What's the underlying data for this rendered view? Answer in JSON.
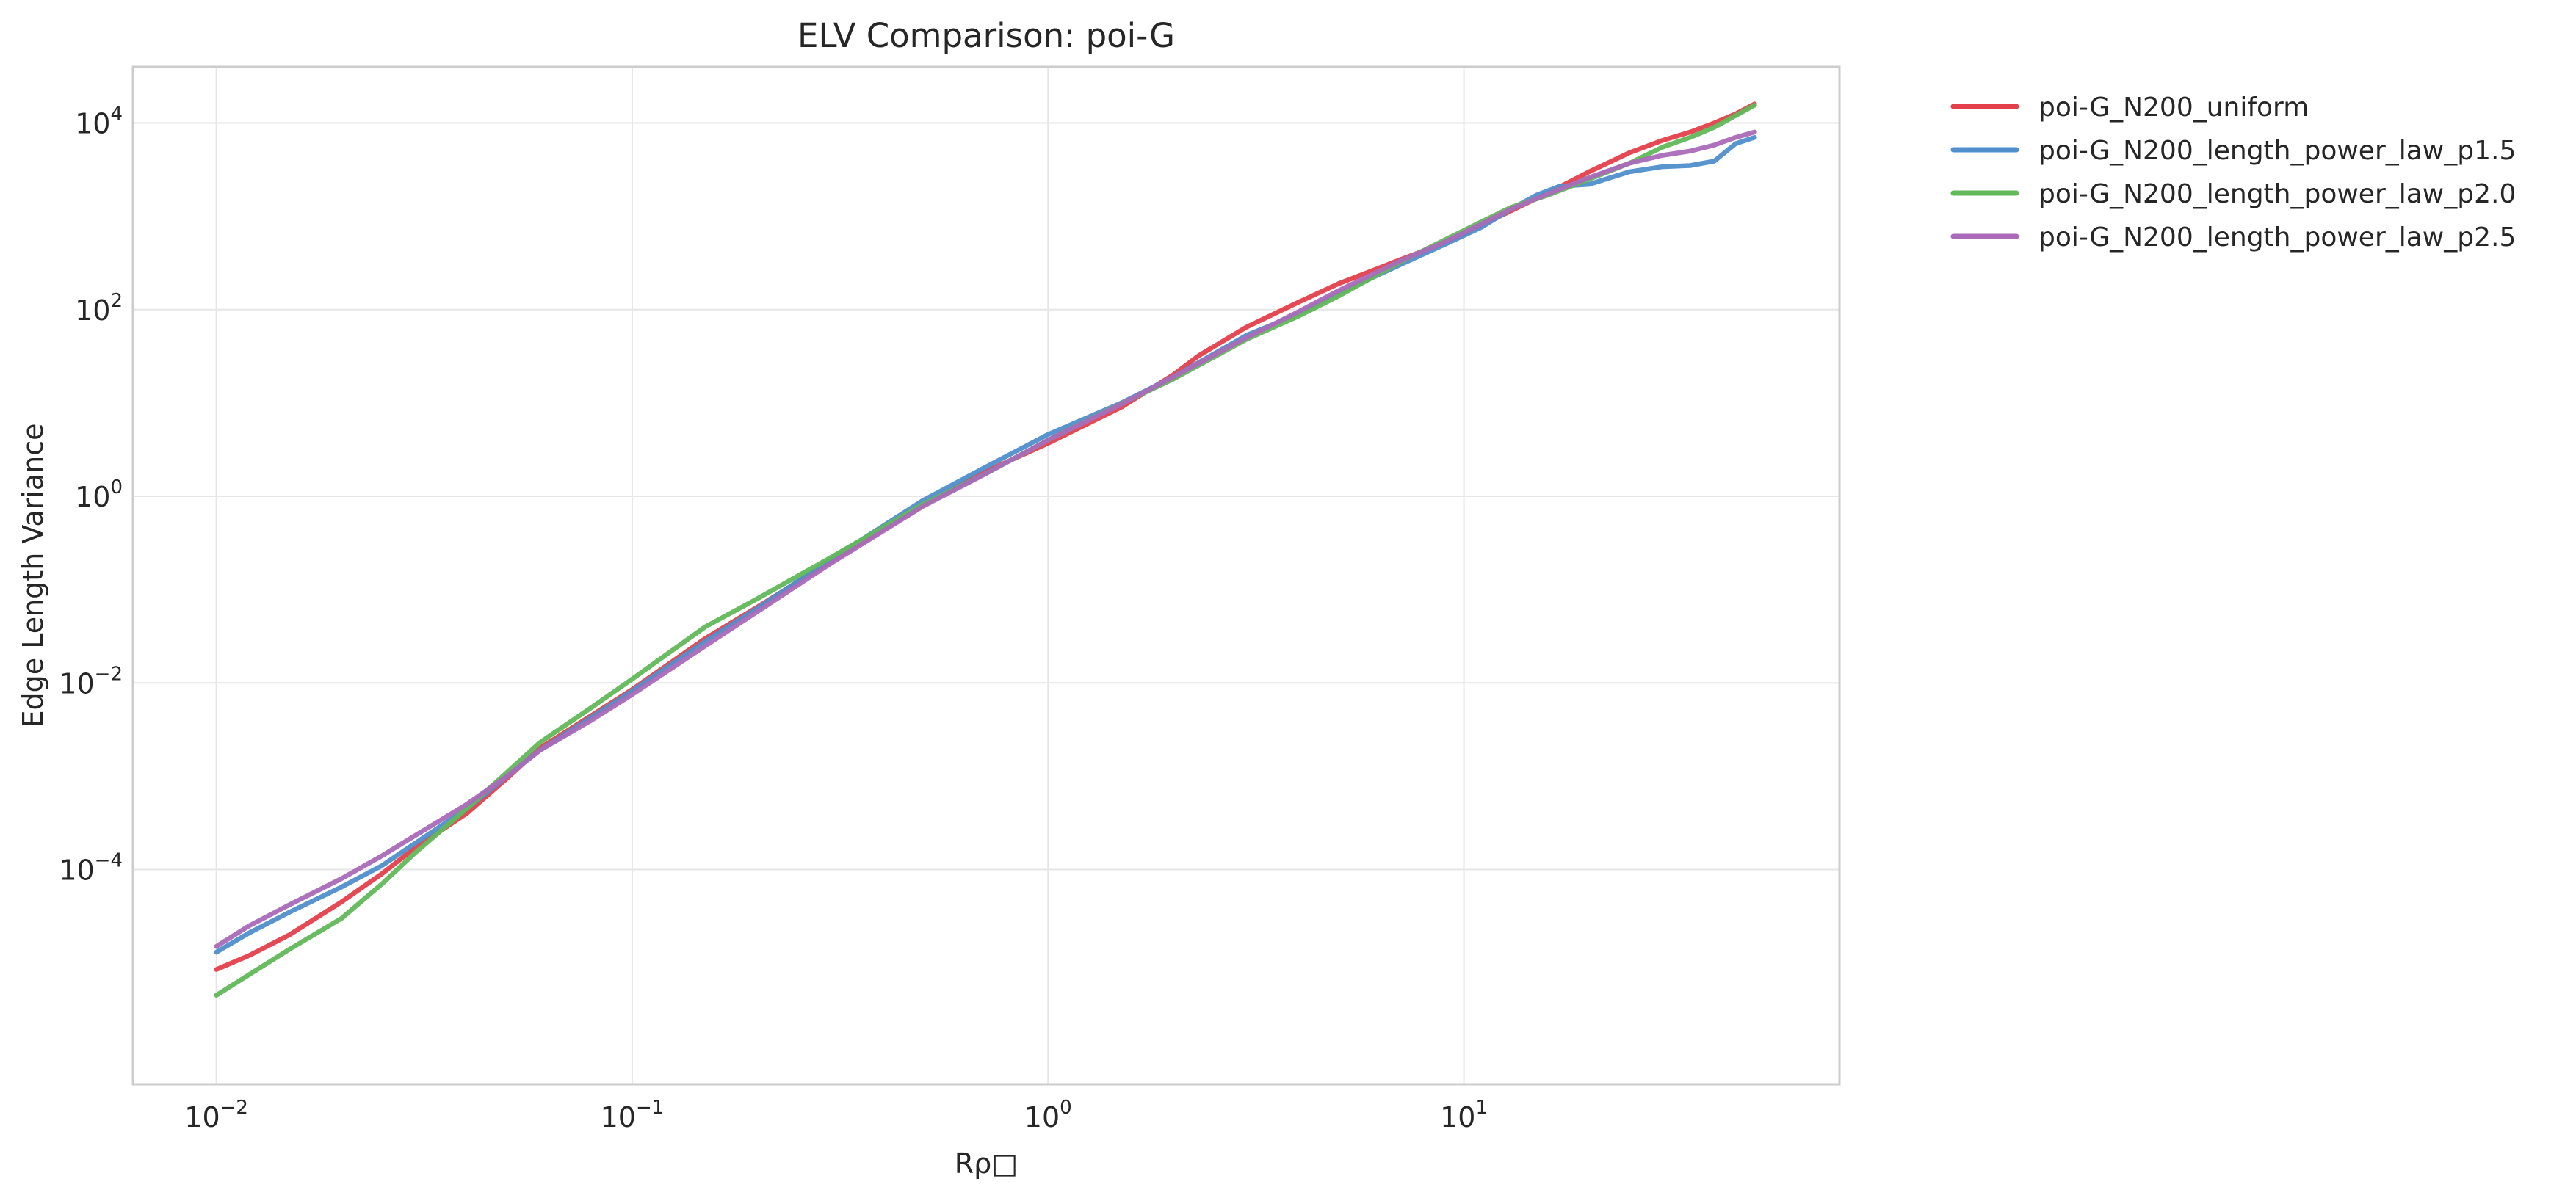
{
  "chart_data": {
    "type": "line",
    "title": "ELV Comparison: poi-G",
    "xlabel": "Rρ□",
    "ylabel": "Edge Length Variance",
    "xscale": "log",
    "yscale": "log",
    "xlim": [
      0.0063,
      80
    ],
    "ylim": [
      5e-07,
      40000
    ],
    "grid": true,
    "legend_position": "outside-top-right",
    "x_ticks": [
      {
        "base": "10",
        "exp": "−2",
        "value": 0.01
      },
      {
        "base": "10",
        "exp": "−1",
        "value": 0.1
      },
      {
        "base": "10",
        "exp": "0",
        "value": 1
      },
      {
        "base": "10",
        "exp": "1",
        "value": 10
      }
    ],
    "y_ticks": [
      {
        "base": "10",
        "exp": "−4",
        "value": 0.0001
      },
      {
        "base": "10",
        "exp": "−2",
        "value": 0.01
      },
      {
        "base": "10",
        "exp": "0",
        "value": 1
      },
      {
        "base": "10",
        "exp": "2",
        "value": 100
      },
      {
        "base": "10",
        "exp": "4",
        "value": 10000
      }
    ],
    "series": [
      {
        "name": "poi-G_N200_uniform",
        "color": "#e4404b",
        "x": [
          0.01,
          0.012,
          0.015,
          0.02,
          0.025,
          0.03,
          0.04,
          0.05,
          0.06,
          0.08,
          0.1,
          0.15,
          0.2,
          0.3,
          0.5,
          0.7,
          1.0,
          1.5,
          2.0,
          2.3,
          3.0,
          4.0,
          5.0,
          6.0,
          7.0,
          9.0,
          11.0,
          13.0,
          16.0,
          20.0,
          25.0,
          30.0,
          35.0,
          40.0,
          45.0,
          50.0
        ],
        "y": [
          8.5e-06,
          1.2e-05,
          2e-05,
          4.5e-05,
          9e-05,
          0.00017,
          0.0004,
          0.00095,
          0.002,
          0.0045,
          0.0085,
          0.03,
          0.065,
          0.2,
          0.8,
          1.8,
          3.7,
          9.0,
          20.0,
          32.0,
          65.0,
          120.0,
          190.0,
          260.0,
          340.0,
          520.0,
          800.0,
          1150.0,
          1800.0,
          3000.0,
          4800.0,
          6500.0,
          8000.0,
          10000.0,
          12500.0,
          16000.0
        ]
      },
      {
        "name": "poi-G_N200_length_power_law_p1.5",
        "color": "#4f8fcc",
        "x": [
          0.01,
          0.012,
          0.015,
          0.02,
          0.025,
          0.03,
          0.04,
          0.05,
          0.06,
          0.08,
          0.1,
          0.15,
          0.2,
          0.3,
          0.5,
          0.7,
          1.0,
          1.5,
          2.0,
          3.0,
          4.0,
          5.0,
          7.0,
          9.0,
          11.0,
          13.0,
          15.0,
          17.0,
          20.0,
          25.0,
          30.0,
          35.0,
          40.0,
          45.0,
          50.0
        ],
        "y": [
          1.3e-05,
          2.1e-05,
          3.5e-05,
          6.5e-05,
          0.00011,
          0.00019,
          0.00045,
          0.001,
          0.0019,
          0.0043,
          0.0082,
          0.028,
          0.063,
          0.21,
          0.9,
          2.0,
          4.6,
          10.0,
          19.0,
          53.0,
          90.0,
          150.0,
          300.0,
          500.0,
          760.0,
          1200.0,
          1700.0,
          2100.0,
          2200.0,
          3000.0,
          3400.0,
          3500.0,
          3900.0,
          6000.0,
          7000.0
        ]
      },
      {
        "name": "poi-G_N200_length_power_law_p2.0",
        "color": "#62b85a",
        "x": [
          0.01,
          0.012,
          0.015,
          0.02,
          0.025,
          0.03,
          0.04,
          0.05,
          0.06,
          0.08,
          0.1,
          0.15,
          0.2,
          0.3,
          0.5,
          0.7,
          1.0,
          1.5,
          2.0,
          3.0,
          4.0,
          5.0,
          7.0,
          9.0,
          11.0,
          13.0,
          16.0,
          20.0,
          25.0,
          30.0,
          35.0,
          40.0,
          45.0,
          50.0
        ],
        "y": [
          4.5e-06,
          7.5e-06,
          1.4e-05,
          3e-05,
          7e-05,
          0.00015,
          0.00045,
          0.0011,
          0.0023,
          0.0055,
          0.011,
          0.04,
          0.08,
          0.22,
          0.82,
          1.7,
          4.0,
          9.8,
          18.0,
          48.0,
          85.0,
          140.0,
          320.0,
          560.0,
          870.0,
          1250.0,
          1700.0,
          2500.0,
          3700.0,
          5500.0,
          7000.0,
          9000.0,
          12000.0,
          15500.0
        ]
      },
      {
        "name": "poi-G_N200_length_power_law_p2.5",
        "color": "#aa6ab9",
        "x": [
          0.01,
          0.012,
          0.015,
          0.02,
          0.025,
          0.03,
          0.04,
          0.05,
          0.06,
          0.08,
          0.1,
          0.15,
          0.2,
          0.3,
          0.5,
          0.7,
          1.0,
          1.5,
          2.0,
          3.0,
          4.0,
          5.0,
          7.0,
          9.0,
          11.0,
          13.0,
          16.0,
          20.0,
          25.0,
          30.0,
          35.0,
          40.0,
          45.0,
          50.0
        ],
        "y": [
          1.5e-05,
          2.5e-05,
          4.2e-05,
          8e-05,
          0.00014,
          0.00023,
          0.0005,
          0.001,
          0.0019,
          0.004,
          0.0075,
          0.025,
          0.058,
          0.19,
          0.78,
          1.7,
          4.0,
          9.7,
          19.0,
          50.0,
          95.0,
          160.0,
          330.0,
          530.0,
          820.0,
          1200.0,
          1750.0,
          2600.0,
          3700.0,
          4500.0,
          5000.0,
          5800.0,
          7000.0,
          8000.0
        ]
      }
    ]
  }
}
